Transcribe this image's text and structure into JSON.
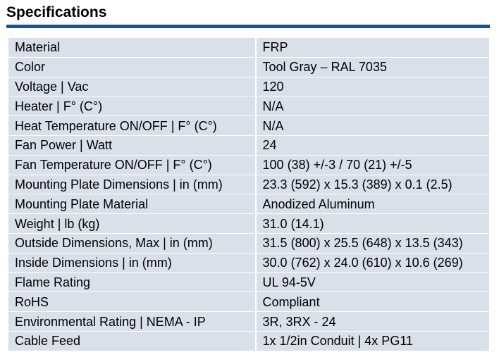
{
  "title": "Specifications",
  "colors": {
    "rule": "#1f4e8c",
    "row_background": "#d9e0ea"
  },
  "specs": [
    {
      "label": "Material",
      "value": "FRP"
    },
    {
      "label": "Color",
      "value": "Tool Gray – RAL 7035"
    },
    {
      "label": "Voltage | Vac",
      "value": "120"
    },
    {
      "label": "Heater | F° (C°)",
      "value": "N/A"
    },
    {
      "label": "Heat Temperature ON/OFF | F° (C°)",
      "value": "N/A"
    },
    {
      "label": "Fan Power | Watt",
      "value": "24"
    },
    {
      "label": "Fan Temperature ON/OFF | F° (C°)",
      "value": "100 (38) +/-3 / 70 (21) +/-5"
    },
    {
      "label": "Mounting Plate Dimensions | in (mm)",
      "value": "23.3 (592) x 15.3 (389) x 0.1 (2.5)"
    },
    {
      "label": "Mounting Plate Material",
      "value": "Anodized Aluminum"
    },
    {
      "label": "Weight | lb (kg)",
      "value": "31.0 (14.1)"
    },
    {
      "label": "Outside Dimensions, Max | in (mm)",
      "value": "31.5 (800) x 25.5 (648) x 13.5 (343)"
    },
    {
      "label": "Inside Dimensions | in (mm)",
      "value": "30.0 (762) x 24.0 (610) x 10.6 (269)"
    },
    {
      "label": "Flame Rating",
      "value": "UL 94-5V"
    },
    {
      "label": "RoHS",
      "value": "Compliant"
    },
    {
      "label": "Environmental Rating | NEMA - IP",
      "value": "3R, 3RX - 24"
    },
    {
      "label": "Cable Feed",
      "value": "1x 1/2in Conduit | 4x PG11"
    }
  ]
}
